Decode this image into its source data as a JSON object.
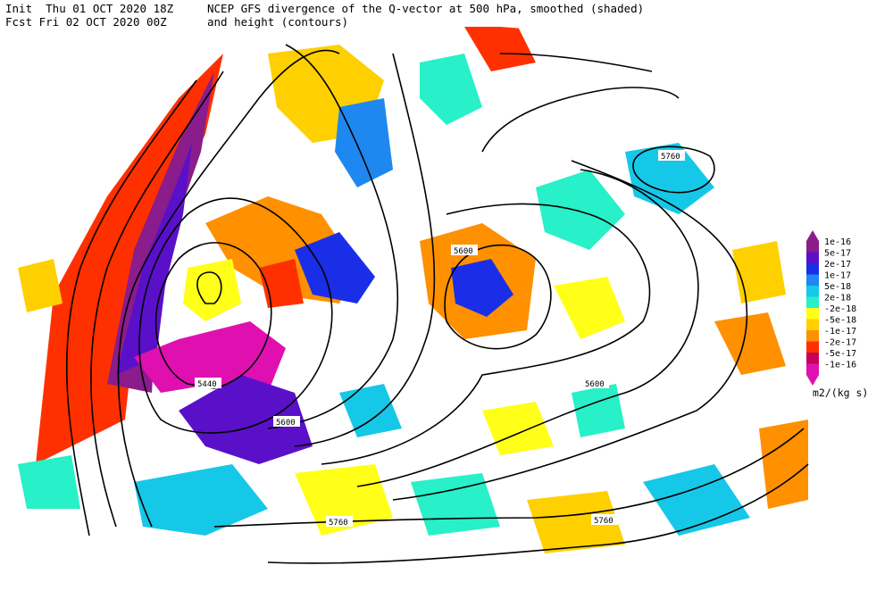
{
  "header": {
    "init_line": "Init  Thu 01 OCT 2020 18Z",
    "fcst_line": "Fcst Fri 02 OCT 2020 00Z",
    "title_line1": "NCEP GFS divergence of the Q-vector at 500 hPa, smoothed (shaded)",
    "title_line2": "and height (contours)"
  },
  "contour_labels": [
    "5760",
    "5600",
    "5600",
    "5440",
    "5600",
    "5760",
    "5760"
  ],
  "legend": {
    "units": "m2/(kg s)",
    "entries": [
      {
        "label": "1e-16",
        "color": "#8a1c8c"
      },
      {
        "label": "5e-17",
        "color": "#5a10c8"
      },
      {
        "label": "2e-17",
        "color": "#1a2ee8"
      },
      {
        "label": "1e-17",
        "color": "#1e88f0"
      },
      {
        "label": "5e-18",
        "color": "#16c8e8"
      },
      {
        "label": "2e-18",
        "color": "#28f0c8"
      },
      {
        "label": "-2e-18",
        "color": "#ffff18"
      },
      {
        "label": "-5e-18",
        "color": "#ffd000"
      },
      {
        "label": "-1e-17",
        "color": "#ff9000"
      },
      {
        "label": "-2e-17",
        "color": "#ff3000"
      },
      {
        "label": "-5e-17",
        "color": "#c8005a"
      },
      {
        "label": "-1e-16",
        "color": "#e010b0"
      }
    ]
  }
}
